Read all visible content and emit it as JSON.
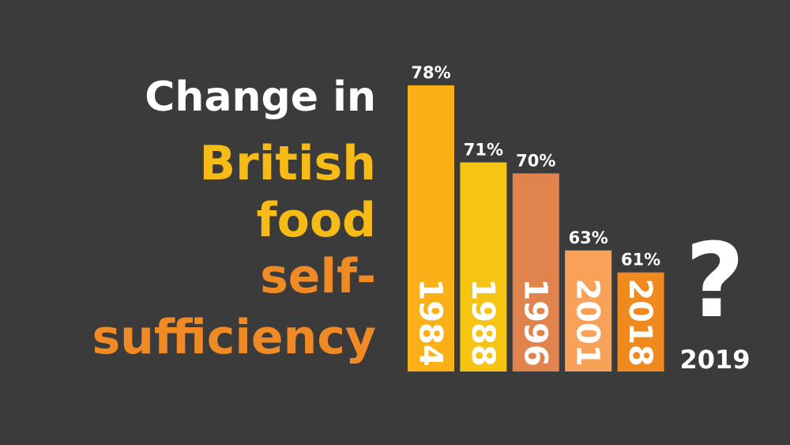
{
  "chart_data": {
    "type": "bar",
    "title_lines": [
      {
        "text": "Change in",
        "color": "#ffffff"
      },
      {
        "text": "British",
        "color": "#f6bb17"
      },
      {
        "text": "food",
        "color": "#f6bb17"
      },
      {
        "text": "self-",
        "color": "#f08a24"
      },
      {
        "text": "sufficiency",
        "color": "#f08a24"
      }
    ],
    "categories": [
      "1984",
      "1988",
      "1996",
      "2001",
      "2018"
    ],
    "values": [
      78,
      71,
      70,
      63,
      61
    ],
    "value_labels": [
      "78%",
      "71%",
      "70%",
      "63%",
      "61%"
    ],
    "colors": [
      "#fbb017",
      "#f6c514",
      "#e0834d",
      "#f8a159",
      "#f08a1f"
    ],
    "ylim": [
      52,
      78
    ],
    "annotation": "?",
    "annotation_label": "2019"
  }
}
